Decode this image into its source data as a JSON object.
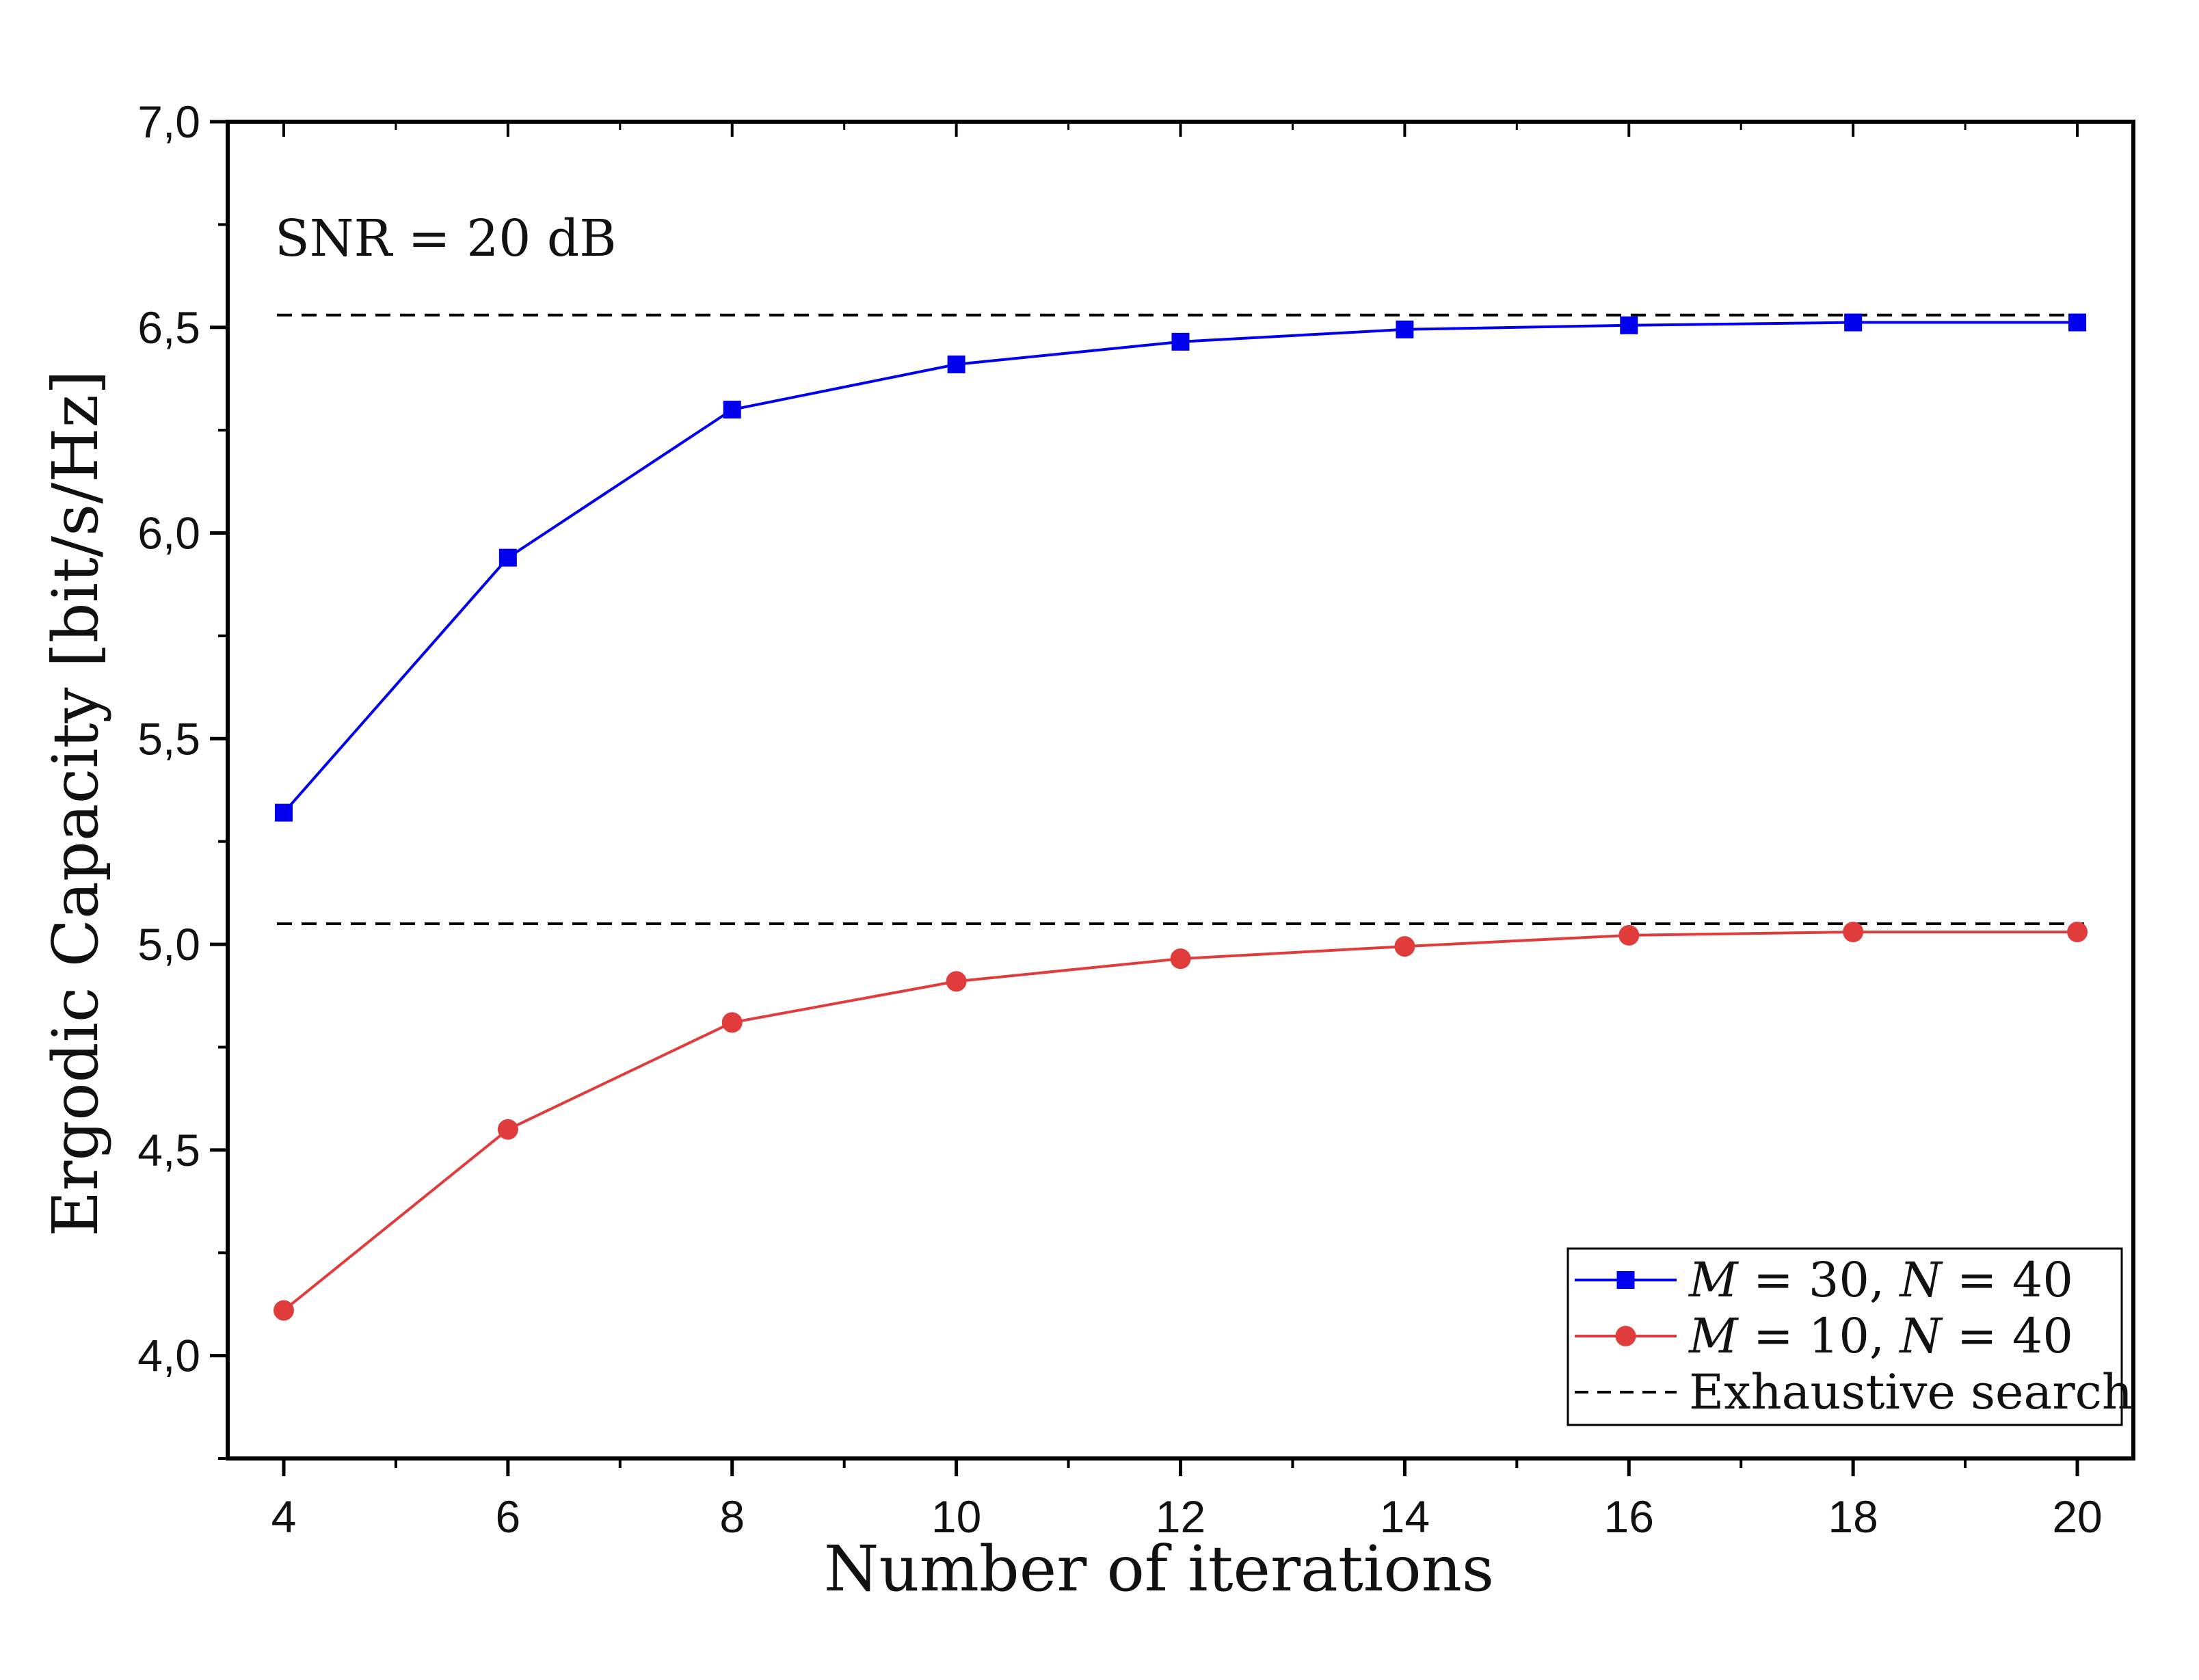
{
  "chart_data": {
    "type": "line",
    "xlabel": "Number of iterations",
    "ylabel": "Ergodic Capacity [bit/s/Hz]",
    "annotation": "SNR = 20 dB",
    "xlim": [
      3.5,
      20.5
    ],
    "ylim": [
      3.75,
      7.0
    ],
    "xticks": [
      4,
      6,
      8,
      10,
      12,
      14,
      16,
      18,
      20
    ],
    "xtick_labels": [
      "4",
      "6",
      "8",
      "10",
      "12",
      "14",
      "16",
      "18",
      "20"
    ],
    "yticks": [
      4.0,
      4.5,
      5.0,
      5.5,
      6.0,
      6.5,
      7.0
    ],
    "ytick_labels": [
      "4,0",
      "4,5",
      "5,0",
      "5,5",
      "6,0",
      "6,5",
      "7,0"
    ],
    "grid": false,
    "legend_position": "bottom-right",
    "series": [
      {
        "name": "M = 30, N = 40",
        "color": "#0000ee",
        "marker": "square",
        "x": [
          4,
          6,
          8,
          10,
          12,
          14,
          16,
          18,
          20
        ],
        "values": [
          5.32,
          5.94,
          6.3,
          6.41,
          6.465,
          6.495,
          6.505,
          6.512,
          6.512
        ]
      },
      {
        "name": "M = 10, N = 40",
        "color": "#e03c3c",
        "marker": "circle",
        "x": [
          4,
          6,
          8,
          10,
          12,
          14,
          16,
          18,
          20
        ],
        "values": [
          4.11,
          4.55,
          4.81,
          4.91,
          4.965,
          4.995,
          5.022,
          5.03,
          5.03
        ]
      }
    ],
    "reference_lines": [
      {
        "name": "Exhaustive search",
        "style": "dashed",
        "color": "#000000",
        "y": 6.53
      },
      {
        "name": "Exhaustive search",
        "style": "dashed",
        "color": "#000000",
        "y": 5.05
      }
    ],
    "legend": {
      "entries": [
        {
          "label_math": "M",
          "label_rest": " = 30, ",
          "label_math2": "N",
          "label_rest2": " = 40"
        },
        {
          "label_math": "M",
          "label_rest": " = 10, ",
          "label_math2": "N",
          "label_rest2": " = 40"
        },
        {
          "label_plain": "Exhaustive search"
        }
      ]
    }
  }
}
